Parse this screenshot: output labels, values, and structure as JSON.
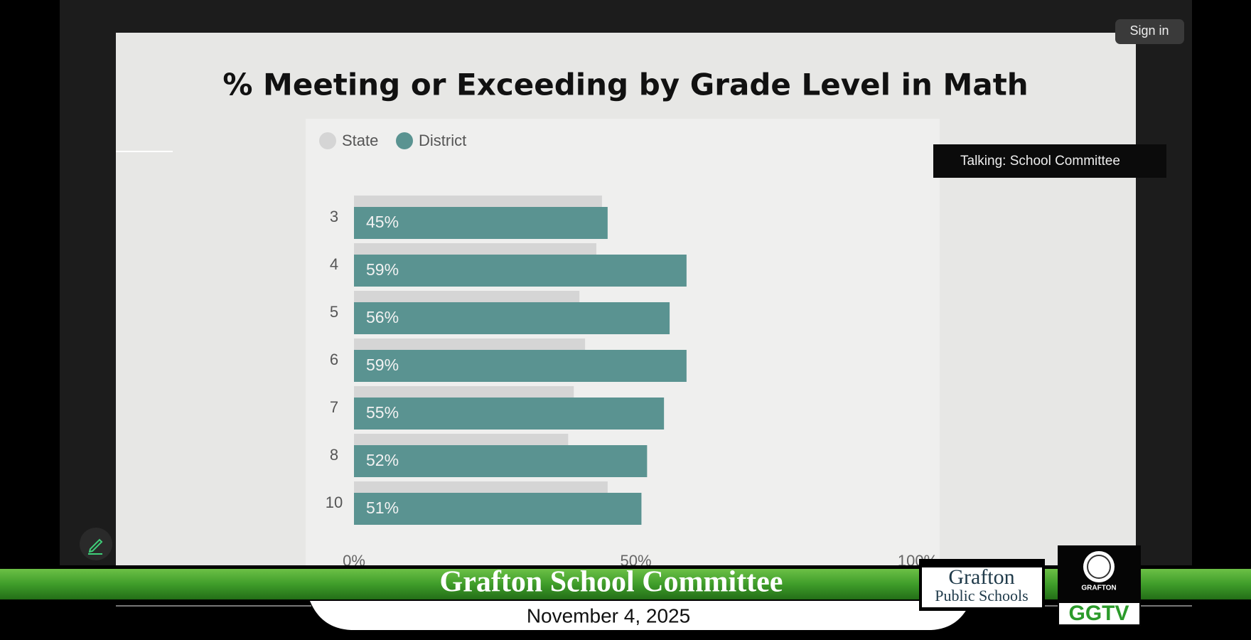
{
  "sign_in": "Sign in",
  "talking": "Talking: School Committee",
  "chart_data": {
    "type": "bar",
    "orientation": "horizontal",
    "title": "% Meeting or Exceeding by Grade Level in Math",
    "categories": [
      "3",
      "4",
      "5",
      "6",
      "7",
      "8",
      "10"
    ],
    "series": [
      {
        "name": "State",
        "color": "#d5d5d5",
        "values": [
          44,
          43,
          40,
          41,
          39,
          38,
          45
        ]
      },
      {
        "name": "District",
        "color": "#5a9391",
        "values": [
          45,
          59,
          56,
          59,
          55,
          52,
          51
        ],
        "value_labels": [
          "45%",
          "59%",
          "56%",
          "59%",
          "55%",
          "52%",
          "51%"
        ]
      }
    ],
    "xlim": [
      0,
      100
    ],
    "xticks": [
      {
        "value": 0,
        "label": "0%"
      },
      {
        "value": 50,
        "label": "50%"
      },
      {
        "value": 100,
        "label": "100%"
      }
    ],
    "grid": false
  },
  "banner": {
    "title": "Grafton School Committee",
    "date": "November 4, 2025"
  },
  "logo": {
    "line1": "Grafton",
    "line2": "Public Schools"
  },
  "station": {
    "seal": "GRAFTON",
    "name": "GGTV"
  }
}
